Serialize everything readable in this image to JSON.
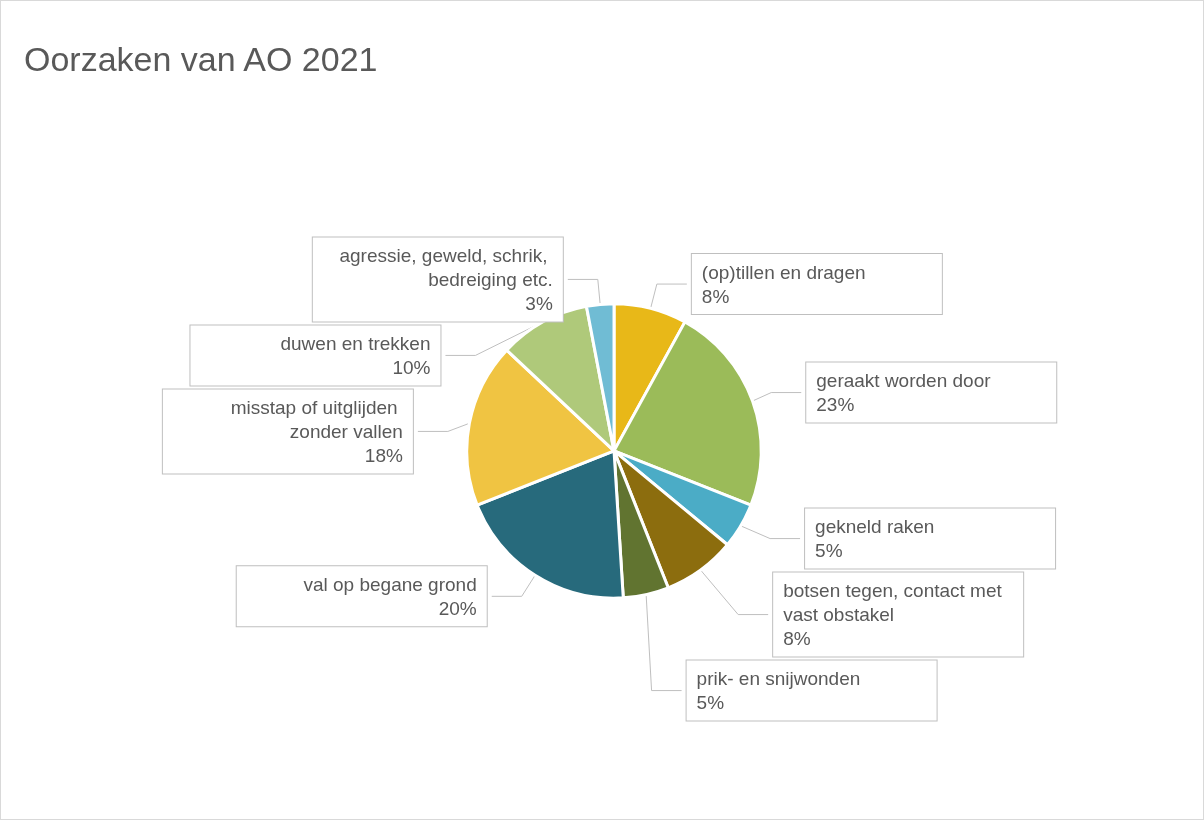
{
  "chart_data": {
    "type": "pie",
    "title": "Oorzaken van AO 2021",
    "categories": [
      "(op)tillen en dragen",
      "geraakt worden door",
      "gekneld raken",
      "botsen tegen, contact met vast obstakel",
      "prik- en snijwonden",
      "val op begane grond",
      "misstap of uitglijden zonder vallen",
      "duwen en trekken",
      "agressie, geweld, schrik, bedreiging etc."
    ],
    "values": [
      8,
      23,
      5,
      8,
      5,
      20,
      18,
      10,
      3
    ],
    "value_labels": [
      "8%",
      "23%",
      "5%",
      "8%",
      "5%",
      "20%",
      "18%",
      "10%",
      "3%"
    ],
    "colors": [
      "#e8b818",
      "#9bbb59",
      "#4bacc6",
      "#8c6d0e",
      "#617430",
      "#276a7c",
      "#f0c442",
      "#afc97a",
      "#70bcd4"
    ],
    "legend": false
  }
}
